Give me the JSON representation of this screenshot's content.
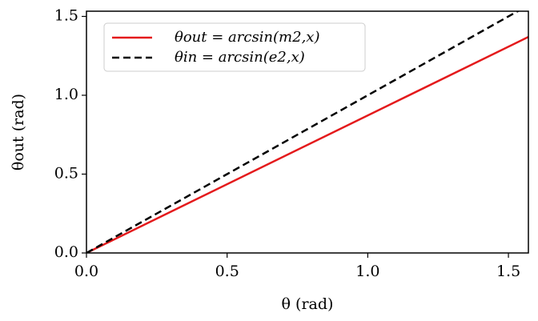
{
  "chart_data": {
    "type": "line",
    "x_label": "θ (rad)",
    "y_label": "θout (rad)",
    "x": [
      0,
      1.571
    ],
    "series": [
      {
        "name": "θout = arcsin(m2,x)",
        "color": "#e41a1c",
        "dash": false,
        "values": [
          0,
          1.37
        ]
      },
      {
        "name": "θin = arcsin(e2,x)",
        "color": "#000000",
        "dash": true,
        "values": [
          0,
          1.571
        ]
      }
    ],
    "xlim": [
      0,
      1.571
    ],
    "ylim": [
      0,
      1.533
    ],
    "xticks": [
      {
        "value": 0,
        "label": "0.0"
      },
      0.5,
      {
        "value": 1,
        "label": "1.0"
      },
      1.5
    ],
    "yticks": [
      {
        "value": 0,
        "label": "0.0"
      },
      0.5,
      {
        "value": 1,
        "label": "1.0"
      },
      1.5
    ],
    "legend": "upper left"
  }
}
